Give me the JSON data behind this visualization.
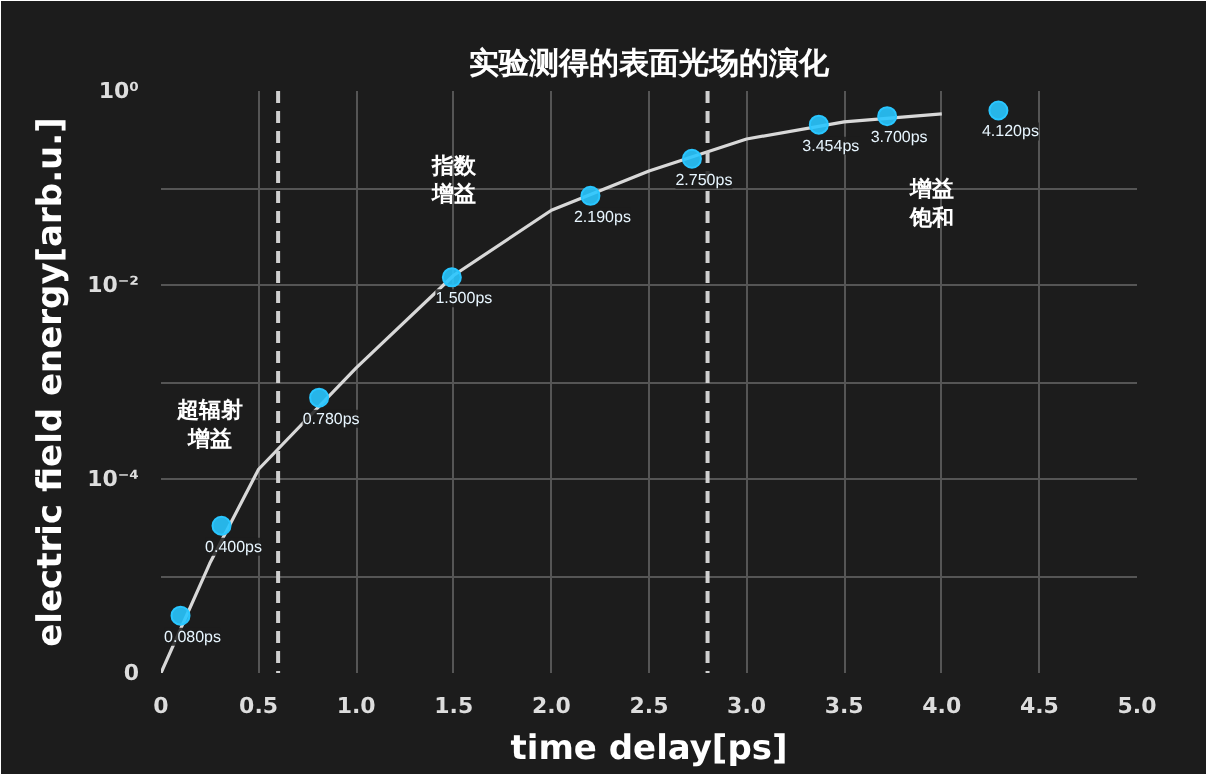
{
  "chart_data": {
    "type": "scatter",
    "title": "实验测得的表面光场的演化",
    "xlabel": "time delay[ps]",
    "ylabel": "electric field energy[arb.u.]",
    "xlim": [
      0,
      5
    ],
    "xticks": [
      {
        "value": 0,
        "label": "0"
      },
      0.5,
      {
        "value": 1,
        "label": "1.0"
      },
      1.5,
      {
        "value": 2,
        "label": "2.0"
      },
      2.5,
      {
        "value": 3,
        "label": "3.0"
      },
      3.5,
      {
        "value": 4,
        "label": "4.0"
      },
      4.5,
      {
        "value": 5,
        "label": "5.0"
      }
    ],
    "log": true,
    "ylim": [
      1e-06,
      1
    ],
    "yticks": [
      {
        "value": 1e-06,
        "label": "0"
      },
      {
        "value": 1e-05,
        "label": null
      },
      {
        "value": 0.0001,
        "label": "10⁻⁴"
      },
      {
        "value": 0.001,
        "label": null
      },
      {
        "value": 0.01,
        "label": "10⁻²"
      },
      {
        "value": 0.1,
        "label": null
      },
      {
        "value": 1,
        "label": "10⁰"
      }
    ],
    "grid": true,
    "series": [
      {
        "type": "line",
        "marker": "none",
        "color": "#d8d8d8",
        "x": [
          0,
          0.25,
          0.5,
          1.0,
          1.5,
          2.0,
          2.5,
          3.0,
          3.5,
          4.0
        ],
        "values": [
          1e-06,
          1.35e-05,
          0.000126,
          0.0014,
          0.0126,
          0.059,
          0.15,
          0.32,
          0.48,
          0.58
        ]
      },
      {
        "marker": "circle",
        "color": "#29c6ff",
        "x": [
          0.1,
          0.31,
          0.81,
          1.49,
          2.2,
          2.72,
          3.37,
          3.72,
          4.29
        ],
        "values": [
          3.9e-06,
          3.3e-05,
          0.00069,
          0.012,
          0.083,
          0.2,
          0.45,
          0.55,
          0.63
        ]
      }
    ],
    "ref_lines": [
      {
        "axis": "x",
        "value": 0.6,
        "label": null,
        "color": "#d0d0d0",
        "line_style": "dashed"
      },
      {
        "axis": "x",
        "value": 2.8,
        "label": null,
        "color": "#d0d0d0",
        "line_style": "dashed"
      }
    ],
    "annotations": [
      "超辐射增益",
      "指数增益",
      "增益饱和",
      {
        "text": "0.080ps",
        "x": 0.1,
        "y": 3.9e-06
      },
      {
        "text": "0.400ps",
        "x": 0.31,
        "y": 3.3e-05
      },
      {
        "text": "0.780ps",
        "x": 0.81,
        "y": 0.00069
      },
      {
        "text": "1.500ps",
        "x": 1.49,
        "y": 0.012
      },
      {
        "text": "2.190ps",
        "x": 2.2,
        "y": 0.083
      },
      {
        "text": "2.750ps",
        "x": 2.72,
        "y": 0.2
      },
      {
        "text": "3.454ps",
        "x": 3.37,
        "y": 0.45
      },
      {
        "text": "3.700ps",
        "x": 3.72,
        "y": 0.55
      },
      {
        "text": "4.120ps",
        "x": 4.29,
        "y": 0.63
      }
    ]
  }
}
